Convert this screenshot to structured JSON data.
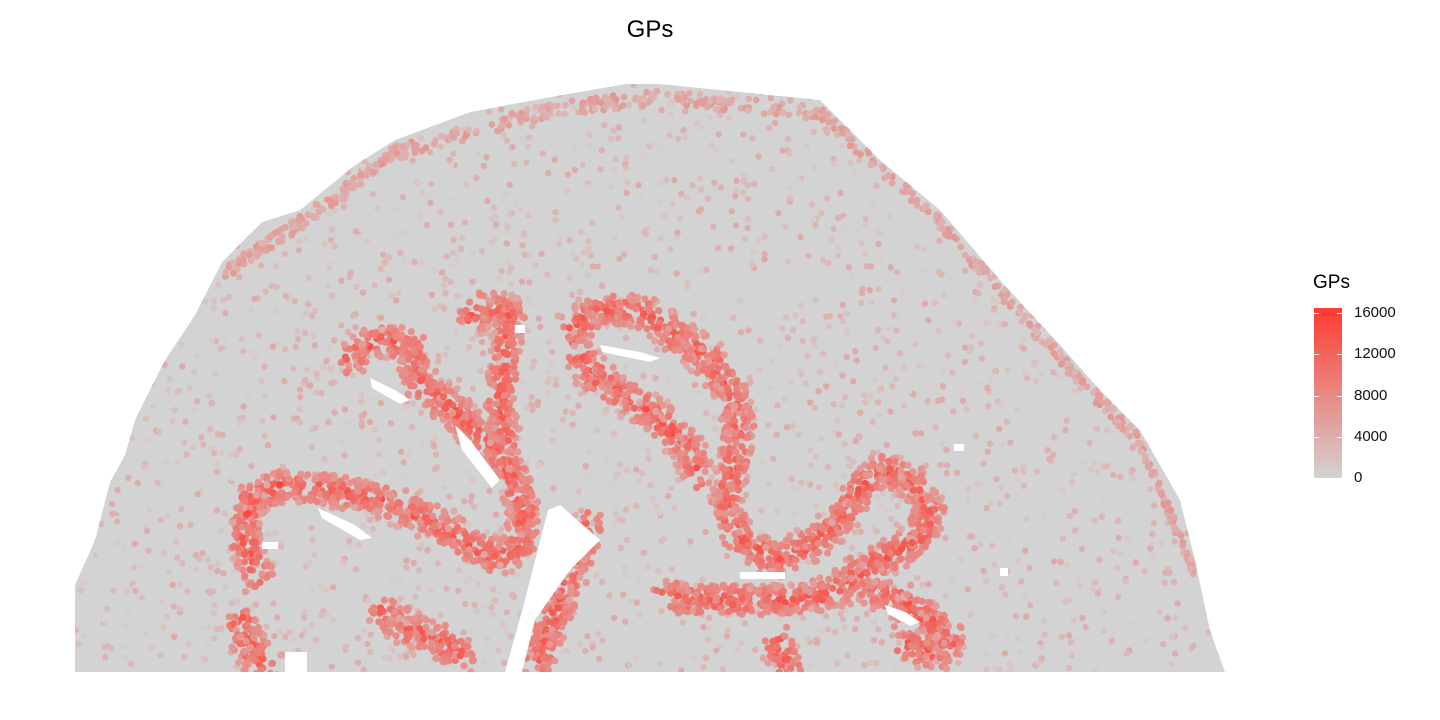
{
  "chart_data": {
    "type": "heatmap",
    "title": "GPs",
    "xlabel": "",
    "ylabel": "",
    "grid": false,
    "axes_visible": false,
    "legend": {
      "title": "GPs",
      "placement": "right",
      "min": 0,
      "max": 16500,
      "ticks": [
        {
          "value": 0,
          "label": "0"
        },
        {
          "value": 4000,
          "label": "4000"
        },
        {
          "value": 8000,
          "label": "8000"
        },
        {
          "value": 12000,
          "label": "12000"
        },
        {
          "value": 16000,
          "label": "16000"
        }
      ]
    },
    "colors": {
      "low": "#d3d3d3",
      "high": "#ff3b30"
    }
  }
}
